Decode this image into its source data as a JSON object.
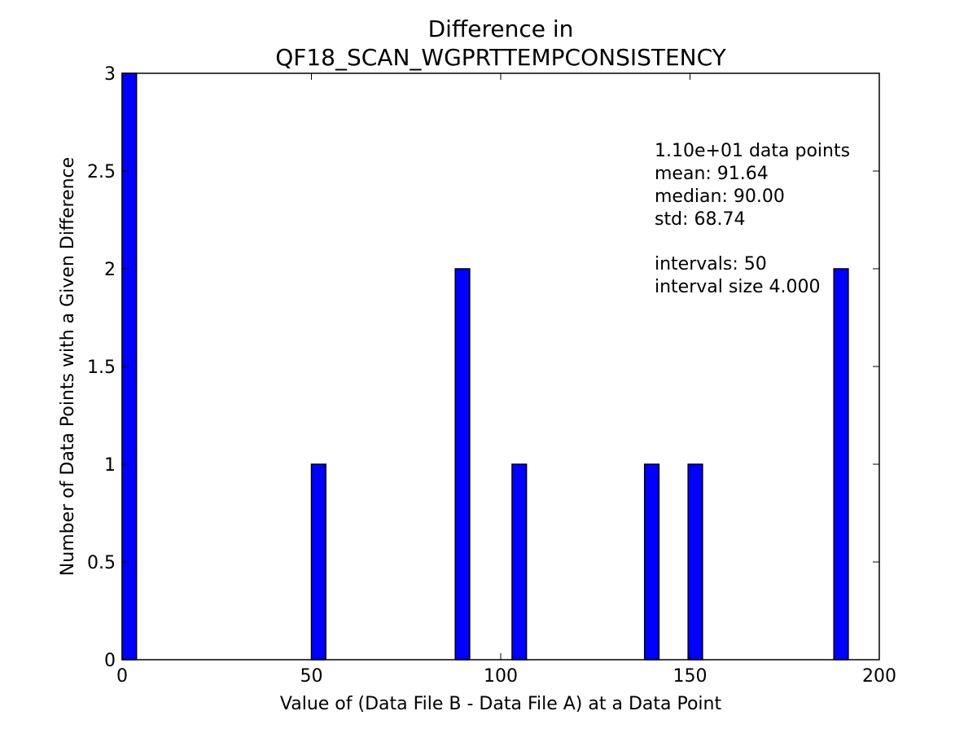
{
  "chart_data": {
    "type": "bar",
    "title_line1": "Difference in",
    "title_line2": "QF18_SCAN_WGPRTTEMPCONSISTENCY",
    "xlabel": "Value of (Data File B - Data File A) at a Data Point",
    "ylabel": "Number of Data Points with a Given Difference",
    "xlim": [
      0,
      200
    ],
    "ylim": [
      0,
      3
    ],
    "xticks": [
      0,
      50,
      100,
      150,
      200
    ],
    "xtick_labels": [
      "0",
      "50",
      "100",
      "150",
      "200"
    ],
    "yticks": [
      0,
      0.5,
      1,
      1.5,
      2,
      2.5,
      3
    ],
    "ytick_labels": [
      "0",
      "0.5",
      "1",
      "1.5",
      "2",
      "2.5",
      "3"
    ],
    "bin_width": 3.8,
    "bars": [
      {
        "x": 0,
        "value": 3
      },
      {
        "x": 50,
        "value": 1
      },
      {
        "x": 88,
        "value": 2
      },
      {
        "x": 103,
        "value": 1
      },
      {
        "x": 138,
        "value": 1
      },
      {
        "x": 149.5,
        "value": 1
      },
      {
        "x": 188,
        "value": 2
      }
    ],
    "bar_color": "#0000ff",
    "grid": false,
    "annotation": {
      "lines": [
        "1.10e+01 data points",
        "mean: 91.64",
        "median: 90.00",
        "std: 68.74",
        "",
        "intervals: 50",
        "interval size 4.000"
      ]
    }
  }
}
